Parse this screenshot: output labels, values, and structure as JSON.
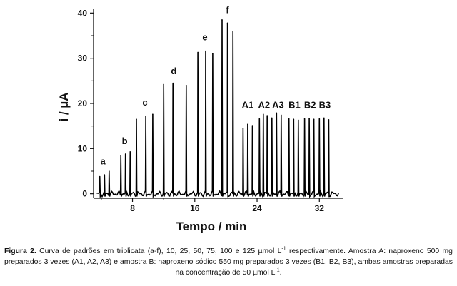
{
  "chart_data": {
    "type": "line",
    "xlabel": "Tempo / min",
    "ylabel": "i / µA",
    "xlim": [
      3.0,
      35.0
    ],
    "ylim": [
      -1.0,
      41.0
    ],
    "xticks": [
      8,
      16,
      24,
      32
    ],
    "yticks": [
      0,
      10,
      20,
      30,
      40
    ],
    "grid": false,
    "baseline": 0,
    "peaks": [
      {
        "x": 3.8,
        "y": 3.8
      },
      {
        "x": 4.4,
        "y": 4.2
      },
      {
        "x": 5.0,
        "y": 5.0
      },
      {
        "x": 6.5,
        "y": 8.5
      },
      {
        "x": 7.1,
        "y": 8.8
      },
      {
        "x": 7.7,
        "y": 9.3
      },
      {
        "x": 8.5,
        "y": 16.5
      },
      {
        "x": 9.7,
        "y": 17.2
      },
      {
        "x": 10.6,
        "y": 17.6
      },
      {
        "x": 12.0,
        "y": 24.2
      },
      {
        "x": 13.2,
        "y": 24.5
      },
      {
        "x": 14.9,
        "y": 24.0
      },
      {
        "x": 16.4,
        "y": 31.3
      },
      {
        "x": 17.4,
        "y": 31.6
      },
      {
        "x": 18.3,
        "y": 31.0
      },
      {
        "x": 19.5,
        "y": 38.5
      },
      {
        "x": 20.2,
        "y": 37.8
      },
      {
        "x": 20.9,
        "y": 36.0
      },
      {
        "x": 22.2,
        "y": 14.5
      },
      {
        "x": 22.8,
        "y": 15.4
      },
      {
        "x": 23.4,
        "y": 15.1
      },
      {
        "x": 24.3,
        "y": 16.6
      },
      {
        "x": 24.8,
        "y": 17.6
      },
      {
        "x": 25.3,
        "y": 17.3
      },
      {
        "x": 25.9,
        "y": 16.8
      },
      {
        "x": 26.5,
        "y": 17.9
      },
      {
        "x": 27.1,
        "y": 17.4
      },
      {
        "x": 28.1,
        "y": 16.6
      },
      {
        "x": 28.7,
        "y": 16.5
      },
      {
        "x": 29.3,
        "y": 16.3
      },
      {
        "x": 30.1,
        "y": 16.6
      },
      {
        "x": 30.7,
        "y": 16.7
      },
      {
        "x": 31.3,
        "y": 16.5
      },
      {
        "x": 32.0,
        "y": 16.6
      },
      {
        "x": 32.6,
        "y": 16.8
      },
      {
        "x": 33.2,
        "y": 16.4
      }
    ],
    "annotations": [
      {
        "text": "a",
        "x": 4.2,
        "y": 6.5
      },
      {
        "text": "b",
        "x": 7.0,
        "y": 11.0
      },
      {
        "text": "c",
        "x": 9.6,
        "y": 19.5
      },
      {
        "text": "d",
        "x": 13.3,
        "y": 26.5
      },
      {
        "text": "e",
        "x": 17.3,
        "y": 34.0
      },
      {
        "text": "f",
        "x": 20.2,
        "y": 40.0
      },
      {
        "text": "A1",
        "x": 22.8,
        "y": 19.0
      },
      {
        "text": "A2",
        "x": 24.9,
        "y": 19.0
      },
      {
        "text": "A3",
        "x": 26.7,
        "y": 19.0
      },
      {
        "text": "B1",
        "x": 28.8,
        "y": 19.0
      },
      {
        "text": "B2",
        "x": 30.8,
        "y": 19.0
      },
      {
        "text": "B3",
        "x": 32.7,
        "y": 19.0
      }
    ]
  },
  "caption": {
    "label": "Figura 2.",
    "part1": " Curva de padrões em triplicata (a-f), 10, 25, 50, 75, 100 e 125 µmol L",
    "sup1": "-1",
    "part2": " respectivamente. Amostra A: naproxeno 500 mg preparados 3 vezes (A1, A2, A3) e amostra B: naproxeno sódico 550 mg preparados 3 vezes (B1, B2, B3), ambas amostras preparadas na concentração de 50 µmol L",
    "sup2": "-1",
    "part3": "."
  }
}
